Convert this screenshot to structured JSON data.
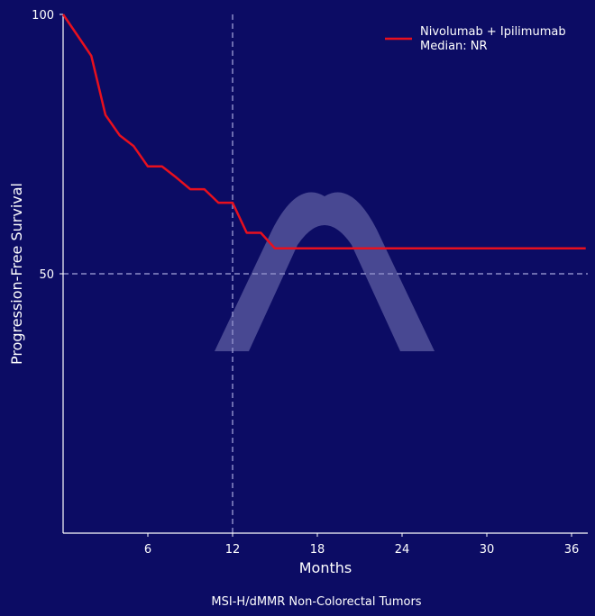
{
  "chart_data": {
    "type": "line",
    "title": "",
    "caption": "MSI-H/dMMR Non-Colorectal Tumors",
    "xlabel": "Months",
    "ylabel": "Progression-Free Survival",
    "xlim": [
      0,
      37
    ],
    "ylim": [
      0,
      100
    ],
    "xticks": [
      6,
      12,
      18,
      24,
      30,
      36
    ],
    "yticks": [
      50,
      100
    ],
    "grid": false,
    "reference_lines": {
      "x": 12,
      "y": 50,
      "style": "dashed"
    },
    "legend_position": "upper right",
    "series": [
      {
        "name": "Nivolumab + Ipilimumab",
        "legend_subtitle": "Median: NR",
        "color": "#e8101e",
        "x": [
          0,
          1,
          2,
          3,
          4,
          5,
          6,
          7,
          8,
          9,
          10,
          11,
          12,
          13,
          14,
          15,
          37
        ],
        "values": [
          100,
          96,
          92,
          80.6,
          76.7,
          74.6,
          70.7,
          70.7,
          68.6,
          66.3,
          66.3,
          63.7,
          63.7,
          57.9,
          57.9,
          54.9,
          54.9
        ]
      }
    ]
  },
  "legend": {
    "line1": "Nivolumab + Ipilimumab",
    "line2": "Median: NR"
  },
  "axes": {
    "x_label": "Months",
    "y_label": "Progression-Free Survival",
    "x_ticks": [
      "6",
      "12",
      "18",
      "24",
      "30",
      "36"
    ],
    "y_ticks": [
      "50",
      "100"
    ]
  },
  "caption": "MSI-H/dMMR Non-Colorectal Tumors",
  "colors": {
    "background": "#0c0c64",
    "curve": "#e8101e",
    "reference": "#8c8cc8",
    "watermark": "#6a6aa8"
  },
  "watermark": {
    "icon": "caret-logo-watermark"
  }
}
